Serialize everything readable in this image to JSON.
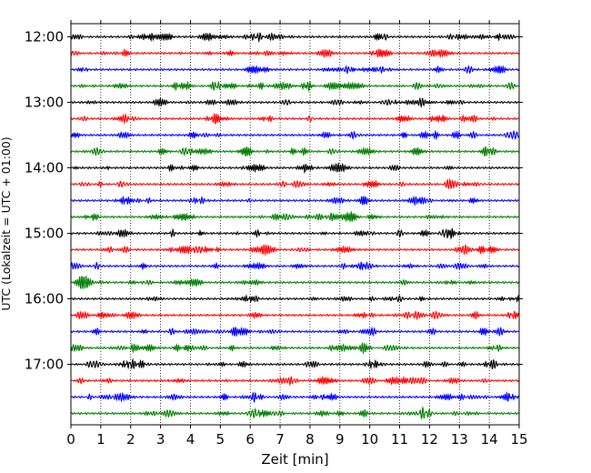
{
  "chart_data": {
    "type": "line",
    "xlabel": "Zeit  [min]",
    "ylabel": "UTC (Lokalzeit = UTC + 01:00)",
    "xlim": [
      0,
      15
    ],
    "x_ticks": [
      "0",
      "1",
      "2",
      "3",
      "4",
      "5",
      "6",
      "7",
      "8",
      "9",
      "10",
      "11",
      "12",
      "13",
      "14",
      "15"
    ],
    "y_tick_labels": [
      "12:00",
      "13:00",
      "14:00",
      "15:00",
      "16:00",
      "17:00"
    ],
    "trace_interval_minutes": 15,
    "trace_start": "12:00",
    "trace_count": 24,
    "trace_colors": [
      "#000000",
      "#ff0000",
      "#0000ff",
      "#007f00"
    ],
    "grid": "vertical dotted lines at each minute"
  }
}
